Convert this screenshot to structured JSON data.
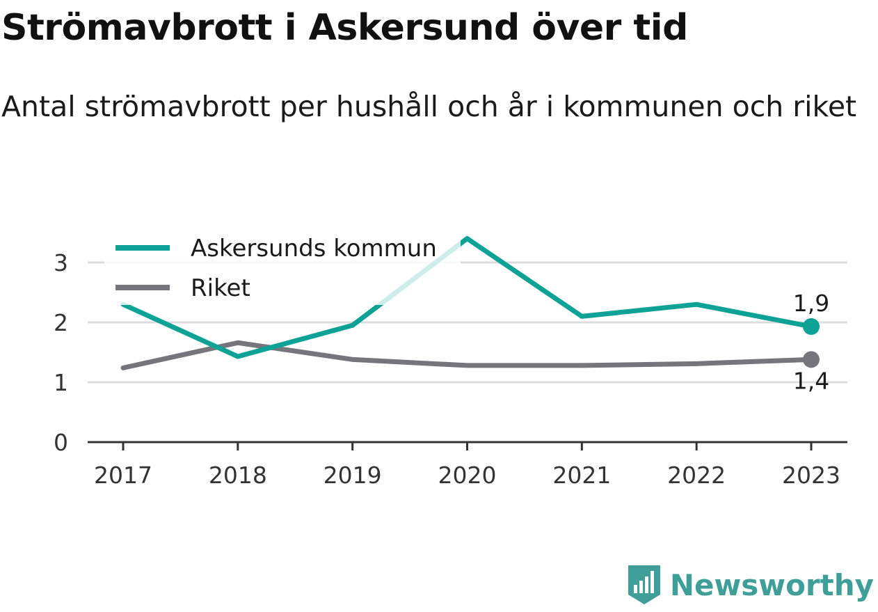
{
  "title": "Strömavbrott i Askersund över tid",
  "subtitle": "Antal strömavbrott per hushåll och år i kommunen och riket",
  "brand": {
    "name": "Newsworthy",
    "color": "#3f9e97",
    "icon": "newsworthy-logo-icon"
  },
  "chart_data": {
    "type": "line",
    "x": [
      "2017",
      "2018",
      "2019",
      "2020",
      "2021",
      "2022",
      "2023"
    ],
    "ylim": [
      0,
      3.4
    ],
    "yticks": [
      0,
      1,
      2,
      3
    ],
    "grid": true,
    "legend_position": "top-left",
    "series": [
      {
        "name": "Askersunds kommun",
        "color": "#0ea297",
        "values": [
          2.3,
          1.43,
          1.95,
          3.4,
          2.1,
          2.3,
          1.93
        ],
        "end_label": "1,9"
      },
      {
        "name": "Riket",
        "color": "#76757b",
        "values": [
          1.24,
          1.66,
          1.38,
          1.28,
          1.28,
          1.31,
          1.38
        ],
        "end_label": "1,4"
      }
    ]
  }
}
